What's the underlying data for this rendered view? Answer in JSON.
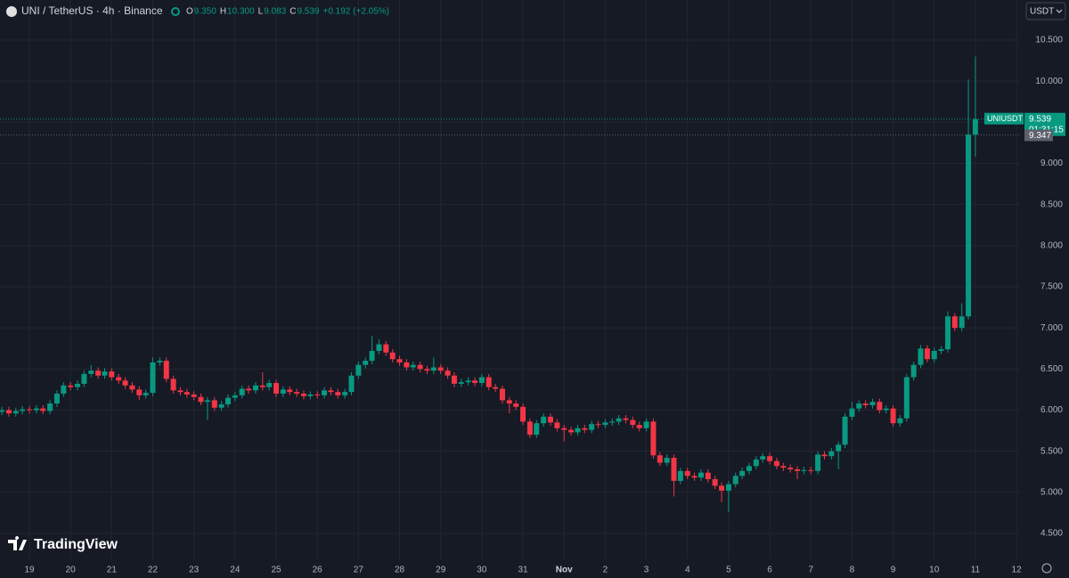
{
  "header": {
    "symbol": "UNI / TetherUS · 4h · Binance",
    "ohlc": [
      {
        "label": "O",
        "value": "9.350"
      },
      {
        "label": "H",
        "value": "10.300"
      },
      {
        "label": "L",
        "value": "9.083"
      },
      {
        "label": "C",
        "value": "9.539"
      }
    ],
    "change": "+0.192 (+2.05%)"
  },
  "currency": "USDT",
  "logo": "TradingView",
  "chart_data": {
    "type": "candlestick",
    "name": "UNIUSDT",
    "up_color": "#089981",
    "down_color": "#f23645",
    "grid": true,
    "last_price": 9.539,
    "countdown": "01:31:15",
    "prev_price": 9.347,
    "xlim": [
      -0.715,
      24.085
    ],
    "ylim": [
      4.186,
      10.987
    ],
    "xticks": [
      {
        "value": 0,
        "label": "19"
      },
      {
        "value": 1,
        "label": "20"
      },
      {
        "value": 2,
        "label": "21"
      },
      {
        "value": 3,
        "label": "22"
      },
      {
        "value": 4,
        "label": "23"
      },
      {
        "value": 5,
        "label": "24"
      },
      {
        "value": 6,
        "label": "25"
      },
      {
        "value": 7,
        "label": "26"
      },
      {
        "value": 8,
        "label": "27"
      },
      {
        "value": 9,
        "label": "28"
      },
      {
        "value": 10,
        "label": "29"
      },
      {
        "value": 11,
        "label": "30"
      },
      {
        "value": 12,
        "label": "31"
      },
      {
        "value": 13,
        "label": "Nov"
      },
      {
        "value": 14,
        "label": "2"
      },
      {
        "value": 15,
        "label": "3"
      },
      {
        "value": 16,
        "label": "4"
      },
      {
        "value": 17,
        "label": "5"
      },
      {
        "value": 18,
        "label": "6"
      },
      {
        "value": 19,
        "label": "7"
      },
      {
        "value": 20,
        "label": "8"
      },
      {
        "value": 21,
        "label": "9"
      },
      {
        "value": 22,
        "label": "10"
      },
      {
        "value": 23,
        "label": "11"
      },
      {
        "value": 24,
        "label": "12"
      }
    ],
    "yticks": [
      {
        "value": 4.5,
        "label": "4.500"
      },
      {
        "value": 5,
        "label": "5.000"
      },
      {
        "value": 5.5,
        "label": "5.500"
      },
      {
        "value": 6,
        "label": "6.000"
      },
      {
        "value": 6.5,
        "label": "6.500"
      },
      {
        "value": 7,
        "label": "7.000"
      },
      {
        "value": 7.5,
        "label": "7.500"
      },
      {
        "value": 8,
        "label": "8.000"
      },
      {
        "value": 8.5,
        "label": "8.500"
      },
      {
        "value": 9,
        "label": "9.000"
      },
      {
        "value": 9.5,
        "label": "9.500"
      },
      {
        "value": 10,
        "label": "10.000"
      },
      {
        "value": 10.5,
        "label": "10.500"
      }
    ],
    "x": [
      -0.67,
      -0.5,
      -0.33,
      -0.17,
      0,
      0.17,
      0.33,
      0.5,
      0.67,
      0.83,
      1,
      1.17,
      1.33,
      1.5,
      1.67,
      1.83,
      2,
      2.17,
      2.33,
      2.5,
      2.67,
      2.83,
      3,
      3.17,
      3.33,
      3.5,
      3.67,
      3.83,
      4,
      4.17,
      4.33,
      4.5,
      4.67,
      4.83,
      5,
      5.17,
      5.33,
      5.5,
      5.67,
      5.83,
      6,
      6.17,
      6.33,
      6.5,
      6.67,
      6.83,
      7,
      7.17,
      7.33,
      7.5,
      7.67,
      7.83,
      8,
      8.17,
      8.33,
      8.5,
      8.67,
      8.83,
      9,
      9.17,
      9.33,
      9.5,
      9.67,
      9.83,
      10,
      10.17,
      10.33,
      10.5,
      10.67,
      10.83,
      11,
      11.17,
      11.33,
      11.5,
      11.67,
      11.83,
      12,
      12.17,
      12.33,
      12.5,
      12.67,
      12.83,
      13,
      13.17,
      13.33,
      13.5,
      13.67,
      13.83,
      14,
      14.17,
      14.33,
      14.5,
      14.67,
      14.83,
      15,
      15.17,
      15.33,
      15.5,
      15.67,
      15.83,
      16,
      16.17,
      16.33,
      16.5,
      16.67,
      16.83,
      17,
      17.17,
      17.33,
      17.5,
      17.67,
      17.83,
      18,
      18.17,
      18.33,
      18.5,
      18.67,
      18.83,
      19,
      19.17,
      19.33,
      19.5,
      19.67,
      19.83,
      20,
      20.17,
      20.33,
      20.5,
      20.67,
      20.83,
      21,
      21.17,
      21.33,
      21.5,
      21.67,
      21.83,
      22,
      22.17,
      22.33,
      22.5,
      22.67,
      22.83,
      23
    ],
    "candles": [
      [
        5.98,
        6.04,
        5.94,
        6.0
      ],
      [
        6.0,
        6.04,
        5.92,
        5.96
      ],
      [
        5.96,
        6.03,
        5.92,
        5.99
      ],
      [
        5.99,
        6.05,
        5.95,
        6.01
      ],
      [
        6.01,
        6.05,
        5.96,
        6.0
      ],
      [
        6.0,
        6.06,
        5.96,
        6.02
      ],
      [
        6.02,
        6.06,
        5.95,
        5.99
      ],
      [
        5.99,
        6.12,
        5.95,
        6.08
      ],
      [
        6.08,
        6.24,
        6.04,
        6.2
      ],
      [
        6.2,
        6.34,
        6.16,
        6.3
      ],
      [
        6.3,
        6.34,
        6.24,
        6.28
      ],
      [
        6.28,
        6.36,
        6.24,
        6.32
      ],
      [
        6.32,
        6.48,
        6.28,
        6.44
      ],
      [
        6.44,
        6.55,
        6.4,
        6.48
      ],
      [
        6.48,
        6.52,
        6.38,
        6.42
      ],
      [
        6.42,
        6.51,
        6.38,
        6.47
      ],
      [
        6.47,
        6.51,
        6.36,
        6.4
      ],
      [
        6.4,
        6.44,
        6.32,
        6.36
      ],
      [
        6.36,
        6.4,
        6.26,
        6.3
      ],
      [
        6.3,
        6.34,
        6.21,
        6.25
      ],
      [
        6.25,
        6.29,
        6.12,
        6.18
      ],
      [
        6.18,
        6.25,
        6.14,
        6.21
      ],
      [
        6.21,
        6.64,
        6.17,
        6.58
      ],
      [
        6.58,
        6.64,
        6.54,
        6.6
      ],
      [
        6.6,
        6.64,
        6.34,
        6.38
      ],
      [
        6.38,
        6.42,
        6.2,
        6.24
      ],
      [
        6.24,
        6.28,
        6.18,
        6.22
      ],
      [
        6.22,
        6.26,
        6.15,
        6.19
      ],
      [
        6.19,
        6.23,
        6.12,
        6.16
      ],
      [
        6.16,
        6.2,
        6.06,
        6.1
      ],
      [
        6.1,
        6.16,
        5.88,
        6.12
      ],
      [
        6.12,
        6.16,
        5.99,
        6.03
      ],
      [
        6.03,
        6.11,
        5.99,
        6.07
      ],
      [
        6.07,
        6.19,
        6.03,
        6.15
      ],
      [
        6.15,
        6.22,
        6.11,
        6.18
      ],
      [
        6.18,
        6.3,
        6.14,
        6.26
      ],
      [
        6.26,
        6.3,
        6.2,
        6.24
      ],
      [
        6.24,
        6.34,
        6.2,
        6.3
      ],
      [
        6.3,
        6.46,
        6.24,
        6.28
      ],
      [
        6.28,
        6.37,
        6.24,
        6.33
      ],
      [
        6.33,
        6.37,
        6.16,
        6.2
      ],
      [
        6.2,
        6.29,
        6.16,
        6.25
      ],
      [
        6.25,
        6.29,
        6.18,
        6.22
      ],
      [
        6.22,
        6.26,
        6.16,
        6.2
      ],
      [
        6.2,
        6.24,
        6.13,
        6.17
      ],
      [
        6.17,
        6.23,
        6.13,
        6.19
      ],
      [
        6.19,
        6.23,
        6.14,
        6.18
      ],
      [
        6.18,
        6.28,
        6.14,
        6.24
      ],
      [
        6.24,
        6.28,
        6.18,
        6.22
      ],
      [
        6.22,
        6.26,
        6.14,
        6.18
      ],
      [
        6.18,
        6.26,
        6.14,
        6.22
      ],
      [
        6.22,
        6.46,
        6.18,
        6.42
      ],
      [
        6.42,
        6.59,
        6.38,
        6.55
      ],
      [
        6.55,
        6.64,
        6.51,
        6.6
      ],
      [
        6.6,
        6.9,
        6.56,
        6.72
      ],
      [
        6.72,
        6.86,
        6.68,
        6.8
      ],
      [
        6.8,
        6.84,
        6.66,
        6.7
      ],
      [
        6.7,
        6.74,
        6.58,
        6.62
      ],
      [
        6.62,
        6.66,
        6.54,
        6.58
      ],
      [
        6.58,
        6.62,
        6.48,
        6.52
      ],
      [
        6.52,
        6.59,
        6.48,
        6.55
      ],
      [
        6.55,
        6.59,
        6.46,
        6.5
      ],
      [
        6.5,
        6.54,
        6.44,
        6.48
      ],
      [
        6.48,
        6.64,
        6.44,
        6.52
      ],
      [
        6.52,
        6.56,
        6.44,
        6.48
      ],
      [
        6.48,
        6.52,
        6.38,
        6.42
      ],
      [
        6.42,
        6.46,
        6.28,
        6.32
      ],
      [
        6.32,
        6.38,
        6.28,
        6.34
      ],
      [
        6.34,
        6.4,
        6.3,
        6.36
      ],
      [
        6.36,
        6.4,
        6.29,
        6.33
      ],
      [
        6.33,
        6.44,
        6.29,
        6.4
      ],
      [
        6.4,
        6.44,
        6.24,
        6.28
      ],
      [
        6.28,
        6.32,
        6.22,
        6.26
      ],
      [
        6.26,
        6.3,
        6.08,
        6.12
      ],
      [
        6.12,
        6.16,
        5.96,
        6.08
      ],
      [
        6.08,
        6.12,
        6.0,
        6.04
      ],
      [
        6.04,
        6.08,
        5.82,
        5.86
      ],
      [
        5.86,
        5.9,
        5.66,
        5.7
      ],
      [
        5.7,
        5.88,
        5.66,
        5.84
      ],
      [
        5.84,
        5.96,
        5.8,
        5.92
      ],
      [
        5.92,
        5.96,
        5.81,
        5.85
      ],
      [
        5.85,
        5.89,
        5.74,
        5.78
      ],
      [
        5.78,
        5.82,
        5.62,
        5.76
      ],
      [
        5.76,
        5.8,
        5.69,
        5.73
      ],
      [
        5.73,
        5.82,
        5.69,
        5.78
      ],
      [
        5.78,
        5.82,
        5.72,
        5.76
      ],
      [
        5.76,
        5.87,
        5.72,
        5.83
      ],
      [
        5.83,
        5.87,
        5.78,
        5.82
      ],
      [
        5.82,
        5.89,
        5.78,
        5.85
      ],
      [
        5.85,
        5.9,
        5.81,
        5.86
      ],
      [
        5.86,
        5.94,
        5.82,
        5.9
      ],
      [
        5.9,
        5.94,
        5.84,
        5.88
      ],
      [
        5.88,
        5.92,
        5.78,
        5.82
      ],
      [
        5.82,
        5.86,
        5.74,
        5.78
      ],
      [
        5.78,
        5.9,
        5.74,
        5.86
      ],
      [
        5.86,
        5.9,
        5.41,
        5.45
      ],
      [
        5.45,
        5.49,
        5.32,
        5.36
      ],
      [
        5.36,
        5.46,
        5.32,
        5.42
      ],
      [
        5.42,
        5.46,
        4.95,
        5.14
      ],
      [
        5.14,
        5.3,
        5.1,
        5.26
      ],
      [
        5.26,
        5.3,
        5.16,
        5.2
      ],
      [
        5.2,
        5.24,
        5.14,
        5.18
      ],
      [
        5.18,
        5.28,
        5.14,
        5.24
      ],
      [
        5.24,
        5.28,
        5.12,
        5.16
      ],
      [
        5.16,
        5.2,
        5.04,
        5.08
      ],
      [
        5.08,
        5.12,
        4.88,
        5.02
      ],
      [
        5.02,
        5.14,
        4.76,
        5.1
      ],
      [
        5.1,
        5.24,
        5.06,
        5.2
      ],
      [
        5.2,
        5.3,
        5.16,
        5.26
      ],
      [
        5.26,
        5.36,
        5.22,
        5.32
      ],
      [
        5.32,
        5.44,
        5.28,
        5.4
      ],
      [
        5.4,
        5.48,
        5.36,
        5.44
      ],
      [
        5.44,
        5.48,
        5.34,
        5.38
      ],
      [
        5.38,
        5.42,
        5.28,
        5.32
      ],
      [
        5.32,
        5.36,
        5.26,
        5.3
      ],
      [
        5.3,
        5.34,
        5.24,
        5.28
      ],
      [
        5.28,
        5.32,
        5.16,
        5.26
      ],
      [
        5.26,
        5.31,
        5.22,
        5.27
      ],
      [
        5.27,
        5.31,
        5.22,
        5.26
      ],
      [
        5.26,
        5.5,
        5.22,
        5.46
      ],
      [
        5.46,
        5.5,
        5.4,
        5.44
      ],
      [
        5.44,
        5.54,
        5.4,
        5.5
      ],
      [
        5.5,
        5.62,
        5.28,
        5.58
      ],
      [
        5.58,
        5.96,
        5.54,
        5.92
      ],
      [
        5.92,
        6.1,
        5.88,
        6.02
      ],
      [
        6.02,
        6.12,
        5.98,
        6.08
      ],
      [
        6.08,
        6.12,
        6.02,
        6.06
      ],
      [
        6.06,
        6.14,
        6.02,
        6.1
      ],
      [
        6.1,
        6.14,
        5.96,
        6.0
      ],
      [
        6.0,
        6.06,
        5.96,
        6.02
      ],
      [
        6.02,
        6.06,
        5.8,
        5.84
      ],
      [
        5.84,
        5.94,
        5.8,
        5.9
      ],
      [
        5.9,
        6.44,
        5.86,
        6.4
      ],
      [
        6.4,
        6.59,
        6.36,
        6.55
      ],
      [
        6.55,
        6.79,
        6.51,
        6.75
      ],
      [
        6.75,
        6.79,
        6.58,
        6.62
      ],
      [
        6.62,
        6.76,
        6.58,
        6.72
      ],
      [
        6.72,
        6.78,
        6.68,
        6.74
      ],
      [
        6.74,
        7.2,
        6.7,
        7.14
      ],
      [
        7.14,
        7.18,
        6.96,
        7.0
      ],
      [
        7.0,
        7.3,
        6.96,
        7.14
      ],
      [
        7.14,
        10.02,
        7.1,
        9.35
      ],
      [
        9.35,
        10.3,
        9.083,
        9.539
      ]
    ]
  }
}
